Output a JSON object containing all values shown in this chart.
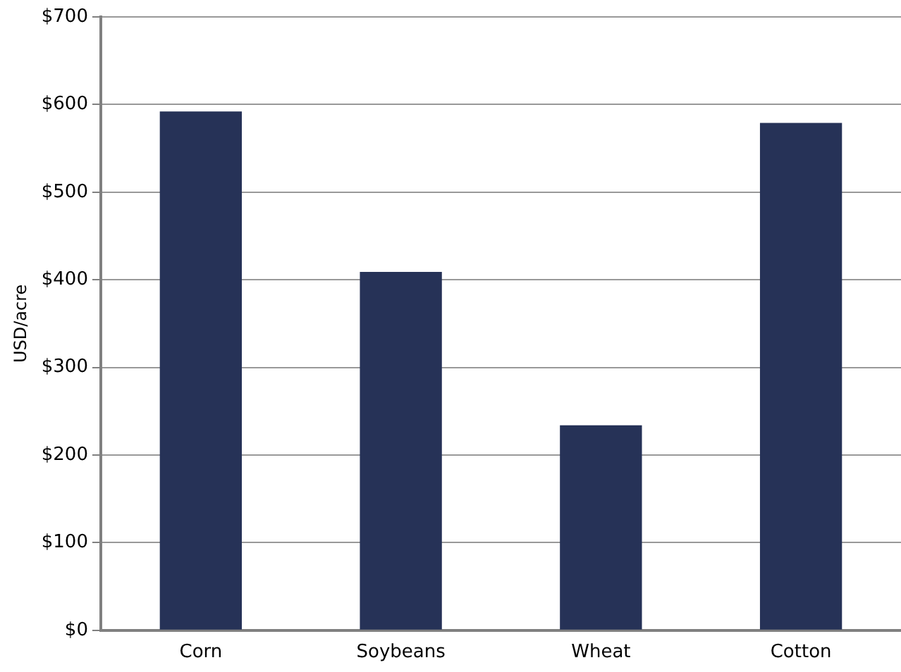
{
  "chart_data": {
    "type": "bar",
    "ylabel": "USD/acre",
    "categories": [
      "Corn",
      "Soybeans",
      "Wheat",
      "Cotton"
    ],
    "values": [
      592,
      409,
      234,
      579
    ],
    "color": "#263257",
    "ylim": [
      0,
      700
    ],
    "yticks": [
      {
        "value": 0,
        "label": "$0"
      },
      {
        "value": 100,
        "label": "$100"
      },
      {
        "value": 200,
        "label": "$200"
      },
      {
        "value": 300,
        "label": "$300"
      },
      {
        "value": 400,
        "label": "$400"
      },
      {
        "value": 500,
        "label": "$500"
      },
      {
        "value": 600,
        "label": "$600"
      },
      {
        "value": 700,
        "label": "$700"
      }
    ],
    "grid": "y",
    "legend": false
  }
}
